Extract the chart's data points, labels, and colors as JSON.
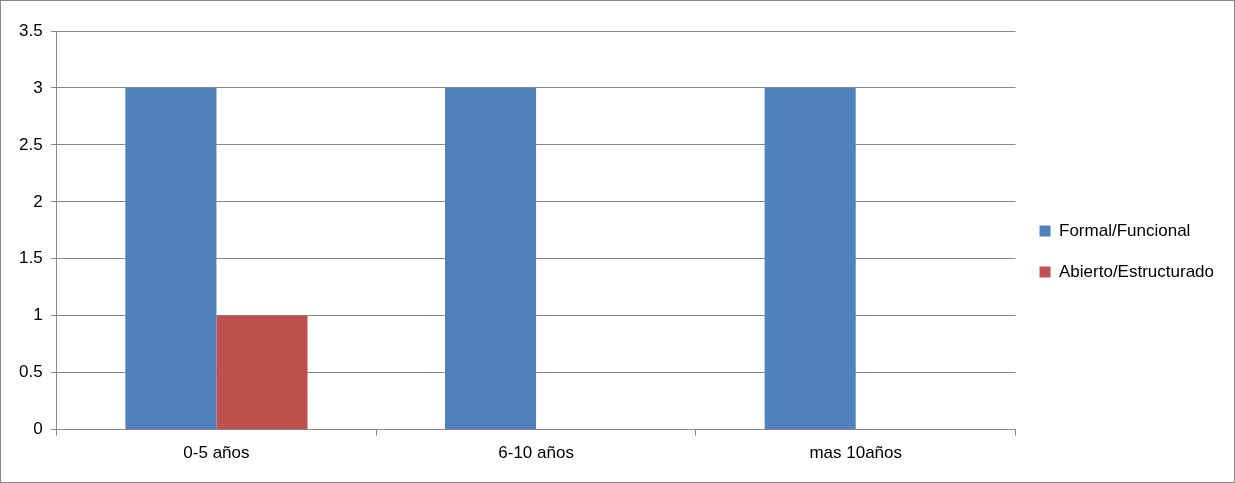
{
  "chart_data": {
    "type": "bar",
    "categories": [
      "0-5 años",
      "6-10 años",
      "mas 10años"
    ],
    "series": [
      {
        "name": "Formal/Funcional",
        "color": "#4f81bd",
        "values": [
          3,
          3,
          3
        ]
      },
      {
        "name": "Abierto/Estructurado",
        "color": "#c0504d",
        "values": [
          1,
          0,
          0
        ]
      }
    ],
    "ylim": [
      0,
      3.5
    ],
    "yticks": [
      0,
      0.5,
      1,
      1.5,
      2,
      2.5,
      3,
      3.5
    ],
    "grid": "y",
    "legend": "right"
  }
}
